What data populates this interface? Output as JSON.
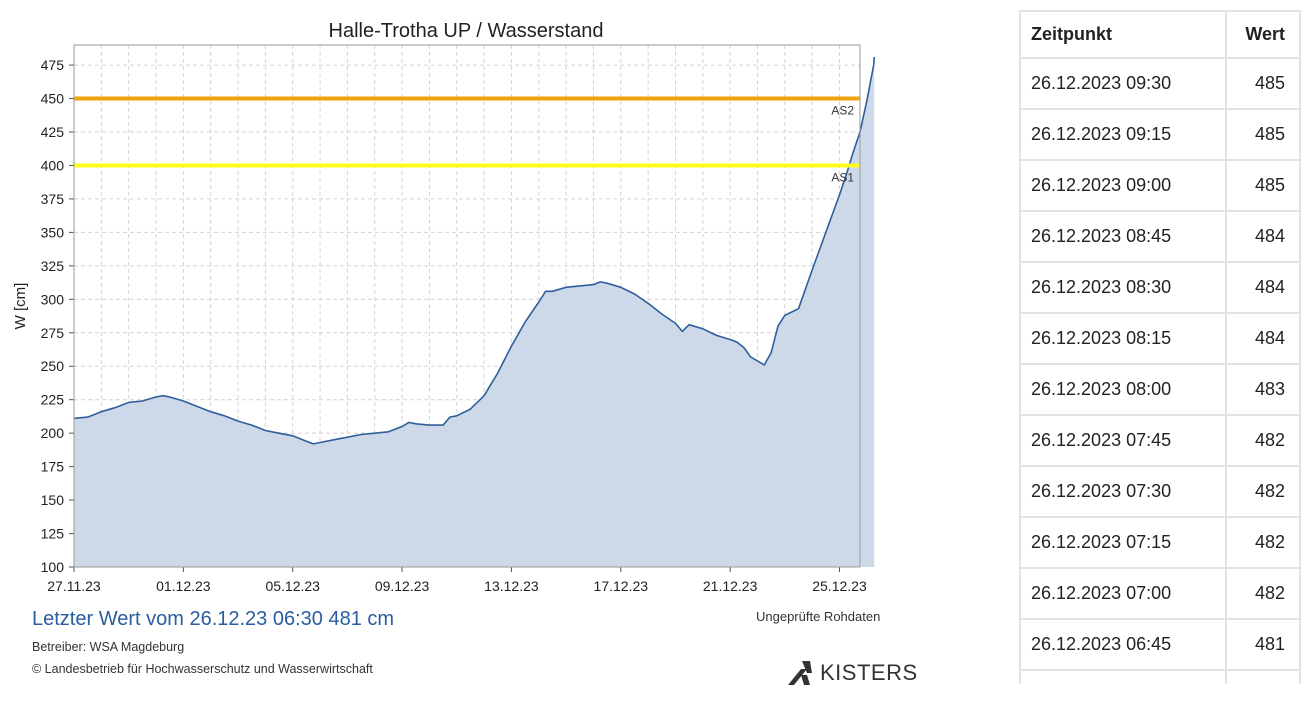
{
  "chart_data": {
    "type": "area",
    "title": "Halle-Trotha UP / Wasserstand",
    "xlabel": "",
    "ylabel": "W [cm]",
    "ylim": [
      100,
      490
    ],
    "yticks": [
      100,
      125,
      150,
      175,
      200,
      225,
      250,
      275,
      300,
      325,
      350,
      375,
      400,
      425,
      450,
      475
    ],
    "xlim_days": [
      0,
      28.75
    ],
    "xticks": [
      {
        "label": "27.11.23",
        "day": 0
      },
      {
        "label": "01.12.23",
        "day": 4
      },
      {
        "label": "05.12.23",
        "day": 8
      },
      {
        "label": "09.12.23",
        "day": 12
      },
      {
        "label": "13.12.23",
        "day": 16
      },
      {
        "label": "17.12.23",
        "day": 20
      },
      {
        "label": "21.12.23",
        "day": 24
      },
      {
        "label": "25.12.23",
        "day": 28
      }
    ],
    "grid": true,
    "series": [
      {
        "color": "#2e5f9c",
        "fill": "#cdd9e8",
        "points": [
          [
            "27.11.23 00:00",
            211
          ],
          [
            "27.11.23 12:00",
            212
          ],
          [
            "28.11.23 00:00",
            216
          ],
          [
            "28.11.23 12:00",
            219
          ],
          [
            "29.11.23 00:00",
            223
          ],
          [
            "29.11.23 12:00",
            224
          ],
          [
            "30.11.23 00:00",
            227
          ],
          [
            "30.11.23 06:00",
            228
          ],
          [
            "30.11.23 12:00",
            227
          ],
          [
            "01.12.23 00:00",
            224
          ],
          [
            "01.12.23 12:00",
            220
          ],
          [
            "02.12.23 00:00",
            216
          ],
          [
            "02.12.23 12:00",
            213
          ],
          [
            "03.12.23 00:00",
            209
          ],
          [
            "03.12.23 12:00",
            206
          ],
          [
            "04.12.23 00:00",
            202
          ],
          [
            "04.12.23 12:00",
            200
          ],
          [
            "05.12.23 00:00",
            198
          ],
          [
            "05.12.23 12:00",
            194
          ],
          [
            "05.12.23 18:00",
            192
          ],
          [
            "06.12.23 00:00",
            193
          ],
          [
            "06.12.23 12:00",
            195
          ],
          [
            "07.12.23 00:00",
            197
          ],
          [
            "07.12.23 12:00",
            199
          ],
          [
            "08.12.23 00:00",
            200
          ],
          [
            "08.12.23 12:00",
            201
          ],
          [
            "09.12.23 00:00",
            205
          ],
          [
            "09.12.23 06:00",
            208
          ],
          [
            "09.12.23 12:00",
            207
          ],
          [
            "10.12.23 00:00",
            206
          ],
          [
            "10.12.23 12:00",
            206
          ],
          [
            "10.12.23 18:00",
            212
          ],
          [
            "11.12.23 00:00",
            213
          ],
          [
            "11.12.23 12:00",
            218
          ],
          [
            "12.12.23 00:00",
            228
          ],
          [
            "12.12.23 12:00",
            245
          ],
          [
            "13.12.23 00:00",
            265
          ],
          [
            "13.12.23 12:00",
            283
          ],
          [
            "14.12.23 00:00",
            298
          ],
          [
            "14.12.23 06:00",
            306
          ],
          [
            "14.12.23 12:00",
            306
          ],
          [
            "15.12.23 00:00",
            309
          ],
          [
            "15.12.23 12:00",
            310
          ],
          [
            "16.12.23 00:00",
            311
          ],
          [
            "16.12.23 06:00",
            313
          ],
          [
            "16.12.23 12:00",
            312
          ],
          [
            "17.12.23 00:00",
            309
          ],
          [
            "17.12.23 12:00",
            304
          ],
          [
            "18.12.23 00:00",
            297
          ],
          [
            "18.12.23 12:00",
            289
          ],
          [
            "19.12.23 00:00",
            282
          ],
          [
            "19.12.23 06:00",
            276
          ],
          [
            "19.12.23 12:00",
            281
          ],
          [
            "20.12.23 00:00",
            278
          ],
          [
            "20.12.23 12:00",
            273
          ],
          [
            "21.12.23 00:00",
            270
          ],
          [
            "21.12.23 06:00",
            268
          ],
          [
            "21.12.23 12:00",
            264
          ],
          [
            "21.12.23 18:00",
            257
          ],
          [
            "22.12.23 00:00",
            254
          ],
          [
            "22.12.23 06:00",
            251
          ],
          [
            "22.12.23 12:00",
            260
          ],
          [
            "22.12.23 18:00",
            280
          ],
          [
            "23.12.23 00:00",
            288
          ],
          [
            "23.12.23 12:00",
            293
          ],
          [
            "24.12.23 00:00",
            322
          ],
          [
            "24.12.23 12:00",
            350
          ],
          [
            "25.12.23 00:00",
            378
          ],
          [
            "25.12.23 06:00",
            393
          ],
          [
            "25.12.23 12:00",
            410
          ],
          [
            "25.12.23 18:00",
            425
          ],
          [
            "26.12.23 00:00",
            448
          ],
          [
            "26.12.23 03:00",
            462
          ],
          [
            "26.12.23 06:00",
            475
          ],
          [
            "26.12.23 06:30",
            481
          ]
        ]
      }
    ],
    "thresholds": [
      {
        "name": "AS2",
        "value": 450,
        "color": "#f0a30a"
      },
      {
        "name": "AS1",
        "value": 400,
        "color": "#ffff19"
      }
    ]
  },
  "footer": {
    "latest": "Letzter Wert vom 26.12.23 06:30  481 cm",
    "operator": "Betreiber: WSA Magdeburg",
    "copyright": "© Landesbetrieb für Hochwasserschutz und Wasserwirtschaft",
    "raw_note": "Ungeprüfte Rohdaten",
    "brand": "KISTERS"
  },
  "table": {
    "headers": {
      "time": "Zeitpunkt",
      "value": "Wert"
    },
    "rows": [
      {
        "time": "26.12.2023 09:30",
        "value": "485"
      },
      {
        "time": "26.12.2023 09:15",
        "value": "485"
      },
      {
        "time": "26.12.2023 09:00",
        "value": "485"
      },
      {
        "time": "26.12.2023 08:45",
        "value": "484"
      },
      {
        "time": "26.12.2023 08:30",
        "value": "484"
      },
      {
        "time": "26.12.2023 08:15",
        "value": "484"
      },
      {
        "time": "26.12.2023 08:00",
        "value": "483"
      },
      {
        "time": "26.12.2023 07:45",
        "value": "482"
      },
      {
        "time": "26.12.2023 07:30",
        "value": "482"
      },
      {
        "time": "26.12.2023 07:15",
        "value": "482"
      },
      {
        "time": "26.12.2023 07:00",
        "value": "482"
      },
      {
        "time": "26.12.2023 06:45",
        "value": "481"
      },
      {
        "time": "",
        "value": ""
      }
    ]
  }
}
